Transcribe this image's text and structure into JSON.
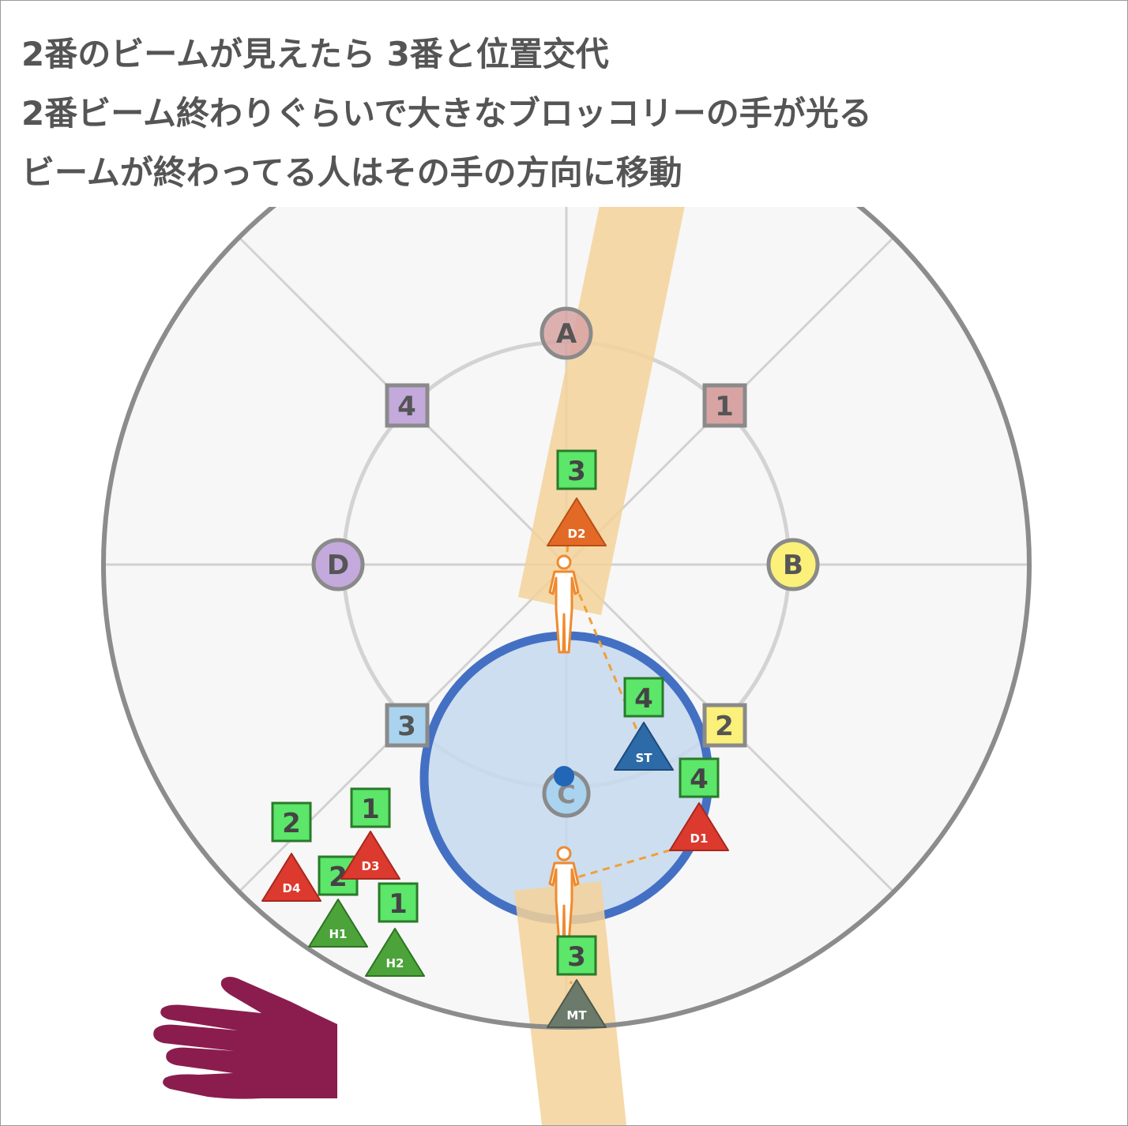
{
  "caption": {
    "lines": [
      "2番のビームが見えたら 3番と位置交代",
      "2番ビーム終わりぐらいで大きなブロッコリーの手が光る",
      "ビームが終わってる人はその手の方向に移動"
    ]
  },
  "arena": {
    "waymarks": [
      {
        "id": "A",
        "label": "A",
        "color": "#d8a3a3"
      },
      {
        "id": "B",
        "label": "B",
        "color": "#faf07a"
      },
      {
        "id": "C",
        "label": "C",
        "color": "#a9d3ee"
      },
      {
        "id": "D",
        "label": "D",
        "color": "#c3a9dc"
      },
      {
        "id": "1",
        "label": "1",
        "color": "#d8a3a3"
      },
      {
        "id": "2",
        "label": "2",
        "color": "#faf07a"
      },
      {
        "id": "3",
        "label": "3",
        "color": "#a9d3ee"
      },
      {
        "id": "4",
        "label": "4",
        "color": "#c3a9dc"
      }
    ],
    "players": [
      {
        "id": "D2",
        "label": "D2",
        "color": "#e36a26"
      },
      {
        "id": "ST",
        "label": "ST",
        "color": "#2c6aa8"
      },
      {
        "id": "D1",
        "label": "D1",
        "color": "#dc3a2e"
      },
      {
        "id": "D3",
        "label": "D3",
        "color": "#dc3a2e"
      },
      {
        "id": "D4",
        "label": "D4",
        "color": "#dc3a2e"
      },
      {
        "id": "H1",
        "label": "H1",
        "color": "#4ba33a"
      },
      {
        "id": "H2",
        "label": "H2",
        "color": "#4ba33a"
      },
      {
        "id": "MT",
        "label": "MT",
        "color": "#6c7a6c"
      }
    ],
    "debuffs": [
      {
        "id": "d2",
        "label": "3"
      },
      {
        "id": "st",
        "label": "4"
      },
      {
        "id": "d1",
        "label": "4"
      },
      {
        "id": "d3",
        "label": "1"
      },
      {
        "id": "d4",
        "label": "2"
      },
      {
        "id": "h1",
        "label": "2"
      },
      {
        "id": "h2",
        "label": "1"
      },
      {
        "id": "mt",
        "label": "3"
      }
    ],
    "colors": {
      "hand": "#8b1d4e",
      "beam": "#f5d29a",
      "aoe_fill": "#c5d9ee",
      "aoe_stroke": "#4470c4",
      "figure": "#ef8a2e",
      "debuff_fill": "#5ce66a"
    }
  }
}
